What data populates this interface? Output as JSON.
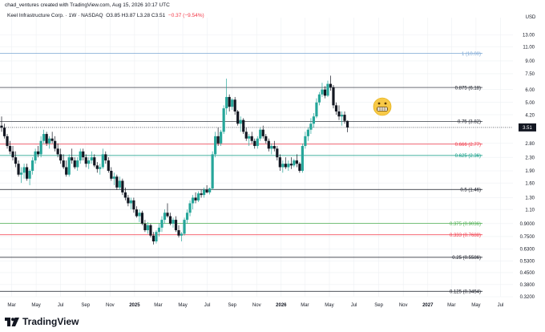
{
  "header": {
    "text": "chad_ventures created with TradingView.com, Aug 15, 2026 10:17 UTC"
  },
  "title": {
    "symbol": "Keel Infrastructure Corp. · 1W · NASDAQ",
    "ohlc": "O3.85  H3.87  L3.28  C3.51",
    "change": "−0.37 (−9.54%)"
  },
  "brand": {
    "name": "TradingView",
    "logo_icon": "tradingview-logo-icon"
  },
  "emoji": {
    "icon": "grimacing-face-icon"
  },
  "colors": {
    "up": "#26a69a",
    "down": "#131722",
    "bg": "#ffffff",
    "grid": "#eef0f3",
    "text": "#131722"
  },
  "chart_data": {
    "type": "candlestick",
    "yscale": "log",
    "ylim": [
      0.32,
      15.5
    ],
    "currency_label": "USD",
    "last_price": 3.51,
    "last_price_label": "3.51",
    "y_ticks": [
      {
        "v": 13.0,
        "label": "13.00"
      },
      {
        "v": 11.0,
        "label": "11.00"
      },
      {
        "v": 9.0,
        "label": "9.00"
      },
      {
        "v": 7.5,
        "label": "7.50"
      },
      {
        "v": 6.0,
        "label": "6.00"
      },
      {
        "v": 5.0,
        "label": "5.00"
      },
      {
        "v": 4.2,
        "label": "4.20"
      },
      {
        "v": 2.8,
        "label": "2.80"
      },
      {
        "v": 2.3,
        "label": "2.30"
      },
      {
        "v": 1.9,
        "label": "1.90"
      },
      {
        "v": 1.6,
        "label": "1.60"
      },
      {
        "v": 1.3,
        "label": "1.30"
      },
      {
        "v": 1.1,
        "label": "1.10"
      },
      {
        "v": 0.9,
        "label": "0.9000"
      },
      {
        "v": 0.75,
        "label": "0.7500"
      },
      {
        "v": 0.63,
        "label": "0.6300"
      },
      {
        "v": 0.53,
        "label": "0.5300"
      },
      {
        "v": 0.45,
        "label": "0.4500"
      },
      {
        "v": 0.38,
        "label": "0.3800"
      },
      {
        "v": 0.32,
        "label": "0.3200"
      }
    ],
    "x_ticks": [
      {
        "t": "2024-03-01",
        "label": "Mar",
        "bold": false
      },
      {
        "t": "2024-05-01",
        "label": "May",
        "bold": false
      },
      {
        "t": "2024-07-01",
        "label": "Jul",
        "bold": false
      },
      {
        "t": "2024-09-01",
        "label": "Sep",
        "bold": false
      },
      {
        "t": "2024-11-01",
        "label": "Nov",
        "bold": false
      },
      {
        "t": "2025-01-01",
        "label": "2025",
        "bold": true
      },
      {
        "t": "2025-03-01",
        "label": "Mar",
        "bold": false
      },
      {
        "t": "2025-05-01",
        "label": "May",
        "bold": false
      },
      {
        "t": "2025-07-01",
        "label": "Jul",
        "bold": false
      },
      {
        "t": "2025-09-01",
        "label": "Sep",
        "bold": false
      },
      {
        "t": "2025-11-01",
        "label": "Nov",
        "bold": false
      },
      {
        "t": "2026-01-01",
        "label": "2026",
        "bold": true
      },
      {
        "t": "2026-03-01",
        "label": "Mar",
        "bold": false
      },
      {
        "t": "2026-05-01",
        "label": "May",
        "bold": false
      },
      {
        "t": "2026-07-01",
        "label": "Jul",
        "bold": false
      },
      {
        "t": "2026-09-01",
        "label": "Sep",
        "bold": false
      },
      {
        "t": "2026-11-01",
        "label": "Nov",
        "bold": false
      },
      {
        "t": "2027-01-01",
        "label": "2027",
        "bold": true
      },
      {
        "t": "2027-03-01",
        "label": "Mar",
        "bold": false
      },
      {
        "t": "2027-05-01",
        "label": "May",
        "bold": false
      },
      {
        "t": "2027-07-01",
        "label": "Jul",
        "bold": false
      }
    ],
    "fib_levels": [
      {
        "level": 1,
        "price": 10.0,
        "label": "1 (10.00)",
        "color": "#7aa6d4"
      },
      {
        "level": 0.875,
        "price": 6.18,
        "label": "0.875 (6.18)",
        "color": "#131722"
      },
      {
        "level": 0.75,
        "price": 3.82,
        "label": "0.75 (3.82)",
        "color": "#131722"
      },
      {
        "level": 0.666,
        "price": 2.77,
        "label": "0.666 (2.77)",
        "color": "#f23645"
      },
      {
        "level": 0.625,
        "price": 2.36,
        "label": "0.625 (2.36)",
        "color": "#089981"
      },
      {
        "level": 0.5,
        "price": 1.46,
        "label": "0.5 (1.46)",
        "color": "#131722"
      },
      {
        "level": 0.375,
        "price": 0.9036,
        "label": "0.375 (0.9036)",
        "color": "#4caf50"
      },
      {
        "level": 0.333,
        "price": 0.7688,
        "label": "0.333 (0.7688)",
        "color": "#f23645"
      },
      {
        "level": 0.25,
        "price": 0.5586,
        "label": "0.25 (0.5586)",
        "color": "#131722"
      },
      {
        "level": 0.125,
        "price": 0.3454,
        "label": "0.125 (0.3454)",
        "color": "#131722"
      }
    ],
    "candles": [
      {
        "t": "2024-02-05",
        "o": 3.6,
        "h": 4.1,
        "l": 3.3,
        "c": 3.5
      },
      {
        "t": "2024-02-12",
        "o": 3.5,
        "h": 3.7,
        "l": 3.0,
        "c": 3.1
      },
      {
        "t": "2024-02-19",
        "o": 3.1,
        "h": 3.2,
        "l": 2.6,
        "c": 2.7
      },
      {
        "t": "2024-02-26",
        "o": 2.7,
        "h": 2.9,
        "l": 2.4,
        "c": 2.5
      },
      {
        "t": "2024-03-04",
        "o": 2.5,
        "h": 2.7,
        "l": 2.2,
        "c": 2.3
      },
      {
        "t": "2024-03-11",
        "o": 2.3,
        "h": 2.5,
        "l": 2.0,
        "c": 2.1
      },
      {
        "t": "2024-03-18",
        "o": 2.1,
        "h": 2.2,
        "l": 1.75,
        "c": 1.8
      },
      {
        "t": "2024-03-25",
        "o": 1.8,
        "h": 2.0,
        "l": 1.6,
        "c": 1.85
      },
      {
        "t": "2024-04-01",
        "o": 1.85,
        "h": 2.1,
        "l": 1.7,
        "c": 2.0
      },
      {
        "t": "2024-04-08",
        "o": 2.0,
        "h": 2.1,
        "l": 1.65,
        "c": 1.7
      },
      {
        "t": "2024-04-15",
        "o": 1.7,
        "h": 1.95,
        "l": 1.55,
        "c": 1.9
      },
      {
        "t": "2024-04-22",
        "o": 1.9,
        "h": 2.3,
        "l": 1.8,
        "c": 2.2
      },
      {
        "t": "2024-04-29",
        "o": 2.2,
        "h": 2.6,
        "l": 2.1,
        "c": 2.5
      },
      {
        "t": "2024-05-06",
        "o": 2.5,
        "h": 2.7,
        "l": 2.3,
        "c": 2.4
      },
      {
        "t": "2024-05-13",
        "o": 2.4,
        "h": 3.1,
        "l": 2.3,
        "c": 2.9
      },
      {
        "t": "2024-05-20",
        "o": 2.9,
        "h": 3.4,
        "l": 2.8,
        "c": 3.2
      },
      {
        "t": "2024-05-27",
        "o": 3.2,
        "h": 3.3,
        "l": 2.7,
        "c": 2.8
      },
      {
        "t": "2024-06-03",
        "o": 2.8,
        "h": 3.1,
        "l": 2.6,
        "c": 3.0
      },
      {
        "t": "2024-06-10",
        "o": 3.0,
        "h": 3.3,
        "l": 2.8,
        "c": 2.9
      },
      {
        "t": "2024-06-17",
        "o": 2.9,
        "h": 3.1,
        "l": 2.5,
        "c": 2.6
      },
      {
        "t": "2024-06-24",
        "o": 2.6,
        "h": 2.8,
        "l": 2.3,
        "c": 2.4
      },
      {
        "t": "2024-07-01",
        "o": 2.4,
        "h": 2.6,
        "l": 2.1,
        "c": 2.2
      },
      {
        "t": "2024-07-08",
        "o": 2.2,
        "h": 2.4,
        "l": 1.95,
        "c": 2.0
      },
      {
        "t": "2024-07-15",
        "o": 2.0,
        "h": 2.2,
        "l": 1.75,
        "c": 1.8
      },
      {
        "t": "2024-07-22",
        "o": 1.8,
        "h": 2.4,
        "l": 1.75,
        "c": 2.3
      },
      {
        "t": "2024-07-29",
        "o": 2.3,
        "h": 2.6,
        "l": 2.1,
        "c": 2.2
      },
      {
        "t": "2024-08-05",
        "o": 2.2,
        "h": 2.3,
        "l": 1.95,
        "c": 2.0
      },
      {
        "t": "2024-08-12",
        "o": 2.0,
        "h": 2.3,
        "l": 1.9,
        "c": 2.2
      },
      {
        "t": "2024-08-19",
        "o": 2.2,
        "h": 2.6,
        "l": 2.1,
        "c": 2.5
      },
      {
        "t": "2024-08-26",
        "o": 2.5,
        "h": 2.6,
        "l": 2.2,
        "c": 2.3
      },
      {
        "t": "2024-09-02",
        "o": 2.3,
        "h": 2.4,
        "l": 2.0,
        "c": 2.1
      },
      {
        "t": "2024-09-09",
        "o": 2.1,
        "h": 2.3,
        "l": 1.95,
        "c": 2.2
      },
      {
        "t": "2024-09-16",
        "o": 2.2,
        "h": 2.5,
        "l": 2.1,
        "c": 2.3
      },
      {
        "t": "2024-09-23",
        "o": 2.3,
        "h": 2.4,
        "l": 2.0,
        "c": 2.05
      },
      {
        "t": "2024-09-30",
        "o": 2.05,
        "h": 2.15,
        "l": 1.85,
        "c": 1.95
      },
      {
        "t": "2024-10-07",
        "o": 1.95,
        "h": 2.1,
        "l": 1.8,
        "c": 2.0
      },
      {
        "t": "2024-10-14",
        "o": 2.0,
        "h": 2.6,
        "l": 1.95,
        "c": 2.4
      },
      {
        "t": "2024-10-21",
        "o": 2.4,
        "h": 2.5,
        "l": 2.1,
        "c": 2.2
      },
      {
        "t": "2024-10-28",
        "o": 2.2,
        "h": 2.3,
        "l": 1.85,
        "c": 1.9
      },
      {
        "t": "2024-11-04",
        "o": 1.9,
        "h": 2.0,
        "l": 1.65,
        "c": 1.7
      },
      {
        "t": "2024-11-11",
        "o": 1.7,
        "h": 1.85,
        "l": 1.55,
        "c": 1.75
      },
      {
        "t": "2024-11-18",
        "o": 1.75,
        "h": 1.8,
        "l": 1.45,
        "c": 1.5
      },
      {
        "t": "2024-11-25",
        "o": 1.5,
        "h": 1.75,
        "l": 1.45,
        "c": 1.65
      },
      {
        "t": "2024-12-02",
        "o": 1.65,
        "h": 1.7,
        "l": 1.35,
        "c": 1.4
      },
      {
        "t": "2024-12-09",
        "o": 1.4,
        "h": 1.5,
        "l": 1.25,
        "c": 1.3
      },
      {
        "t": "2024-12-16",
        "o": 1.3,
        "h": 1.35,
        "l": 1.15,
        "c": 1.2
      },
      {
        "t": "2024-12-23",
        "o": 1.2,
        "h": 1.3,
        "l": 1.1,
        "c": 1.25
      },
      {
        "t": "2024-12-30",
        "o": 1.25,
        "h": 1.3,
        "l": 1.05,
        "c": 1.1
      },
      {
        "t": "2025-01-06",
        "o": 1.1,
        "h": 1.15,
        "l": 0.98,
        "c": 1.0
      },
      {
        "t": "2025-01-13",
        "o": 1.0,
        "h": 1.1,
        "l": 0.92,
        "c": 1.05
      },
      {
        "t": "2025-01-20",
        "o": 1.05,
        "h": 1.08,
        "l": 0.88,
        "c": 0.9
      },
      {
        "t": "2025-01-27",
        "o": 0.9,
        "h": 0.95,
        "l": 0.8,
        "c": 0.82
      },
      {
        "t": "2025-02-03",
        "o": 0.82,
        "h": 0.92,
        "l": 0.78,
        "c": 0.88
      },
      {
        "t": "2025-02-10",
        "o": 0.88,
        "h": 0.9,
        "l": 0.74,
        "c": 0.76
      },
      {
        "t": "2025-02-17",
        "o": 0.76,
        "h": 0.8,
        "l": 0.67,
        "c": 0.7
      },
      {
        "t": "2025-02-24",
        "o": 0.7,
        "h": 0.82,
        "l": 0.68,
        "c": 0.8
      },
      {
        "t": "2025-03-03",
        "o": 0.8,
        "h": 0.9,
        "l": 0.75,
        "c": 0.85
      },
      {
        "t": "2025-03-10",
        "o": 0.85,
        "h": 1.0,
        "l": 0.8,
        "c": 0.95
      },
      {
        "t": "2025-03-17",
        "o": 0.95,
        "h": 1.1,
        "l": 0.9,
        "c": 1.05
      },
      {
        "t": "2025-03-24",
        "o": 1.05,
        "h": 1.2,
        "l": 0.98,
        "c": 1.0
      },
      {
        "t": "2025-03-31",
        "o": 1.0,
        "h": 1.05,
        "l": 0.88,
        "c": 0.9
      },
      {
        "t": "2025-04-07",
        "o": 0.9,
        "h": 0.98,
        "l": 0.85,
        "c": 0.95
      },
      {
        "t": "2025-04-14",
        "o": 0.95,
        "h": 1.0,
        "l": 0.8,
        "c": 0.82
      },
      {
        "t": "2025-04-21",
        "o": 0.82,
        "h": 0.88,
        "l": 0.74,
        "c": 0.76
      },
      {
        "t": "2025-04-28",
        "o": 0.76,
        "h": 0.8,
        "l": 0.7,
        "c": 0.78
      },
      {
        "t": "2025-05-05",
        "o": 0.78,
        "h": 0.98,
        "l": 0.76,
        "c": 0.95
      },
      {
        "t": "2025-05-12",
        "o": 0.95,
        "h": 1.1,
        "l": 0.9,
        "c": 1.05
      },
      {
        "t": "2025-05-19",
        "o": 1.05,
        "h": 1.25,
        "l": 1.0,
        "c": 1.2
      },
      {
        "t": "2025-05-26",
        "o": 1.2,
        "h": 1.35,
        "l": 1.1,
        "c": 1.3
      },
      {
        "t": "2025-06-02",
        "o": 1.3,
        "h": 1.4,
        "l": 1.2,
        "c": 1.25
      },
      {
        "t": "2025-06-09",
        "o": 1.25,
        "h": 1.42,
        "l": 1.22,
        "c": 1.38
      },
      {
        "t": "2025-06-16",
        "o": 1.38,
        "h": 1.45,
        "l": 1.3,
        "c": 1.35
      },
      {
        "t": "2025-06-23",
        "o": 1.35,
        "h": 1.5,
        "l": 1.3,
        "c": 1.45
      },
      {
        "t": "2025-06-30",
        "o": 1.45,
        "h": 1.55,
        "l": 1.38,
        "c": 1.4
      },
      {
        "t": "2025-07-07",
        "o": 1.4,
        "h": 1.5,
        "l": 1.36,
        "c": 1.48
      },
      {
        "t": "2025-07-14",
        "o": 1.48,
        "h": 2.5,
        "l": 1.45,
        "c": 2.4
      },
      {
        "t": "2025-07-21",
        "o": 2.4,
        "h": 3.3,
        "l": 2.3,
        "c": 3.1
      },
      {
        "t": "2025-07-28",
        "o": 3.1,
        "h": 3.5,
        "l": 2.7,
        "c": 2.8
      },
      {
        "t": "2025-08-04",
        "o": 2.8,
        "h": 3.4,
        "l": 2.7,
        "c": 3.3
      },
      {
        "t": "2025-08-11",
        "o": 3.3,
        "h": 4.8,
        "l": 3.2,
        "c": 4.6
      },
      {
        "t": "2025-08-18",
        "o": 4.6,
        "h": 7.0,
        "l": 4.2,
        "c": 5.4
      },
      {
        "t": "2025-08-25",
        "o": 5.4,
        "h": 5.6,
        "l": 4.4,
        "c": 4.7
      },
      {
        "t": "2025-09-01",
        "o": 4.7,
        "h": 5.3,
        "l": 4.5,
        "c": 5.2
      },
      {
        "t": "2025-09-08",
        "o": 5.2,
        "h": 5.4,
        "l": 4.2,
        "c": 4.4
      },
      {
        "t": "2025-09-15",
        "o": 4.4,
        "h": 4.5,
        "l": 3.6,
        "c": 3.7
      },
      {
        "t": "2025-09-22",
        "o": 3.7,
        "h": 4.1,
        "l": 3.3,
        "c": 3.9
      },
      {
        "t": "2025-09-29",
        "o": 3.9,
        "h": 4.0,
        "l": 3.2,
        "c": 3.3
      },
      {
        "t": "2025-10-06",
        "o": 3.3,
        "h": 3.5,
        "l": 2.9,
        "c": 3.0
      },
      {
        "t": "2025-10-13",
        "o": 3.0,
        "h": 3.2,
        "l": 2.7,
        "c": 3.1
      },
      {
        "t": "2025-10-20",
        "o": 3.1,
        "h": 3.3,
        "l": 2.8,
        "c": 2.9
      },
      {
        "t": "2025-10-27",
        "o": 2.9,
        "h": 3.0,
        "l": 2.6,
        "c": 2.7
      },
      {
        "t": "2025-11-03",
        "o": 2.7,
        "h": 3.1,
        "l": 2.6,
        "c": 3.0
      },
      {
        "t": "2025-11-10",
        "o": 3.0,
        "h": 3.5,
        "l": 2.9,
        "c": 3.4
      },
      {
        "t": "2025-11-17",
        "o": 3.4,
        "h": 3.6,
        "l": 3.0,
        "c": 3.1
      },
      {
        "t": "2025-11-24",
        "o": 3.1,
        "h": 3.2,
        "l": 2.8,
        "c": 2.9
      },
      {
        "t": "2025-12-01",
        "o": 2.9,
        "h": 3.0,
        "l": 2.5,
        "c": 2.6
      },
      {
        "t": "2025-12-08",
        "o": 2.6,
        "h": 2.8,
        "l": 2.4,
        "c": 2.7
      },
      {
        "t": "2025-12-15",
        "o": 2.7,
        "h": 2.9,
        "l": 2.5,
        "c": 2.6
      },
      {
        "t": "2025-12-22",
        "o": 2.6,
        "h": 2.7,
        "l": 2.2,
        "c": 2.3
      },
      {
        "t": "2025-12-29",
        "o": 2.3,
        "h": 2.4,
        "l": 1.9,
        "c": 2.0
      },
      {
        "t": "2026-01-05",
        "o": 2.0,
        "h": 2.2,
        "l": 1.85,
        "c": 2.1
      },
      {
        "t": "2026-01-12",
        "o": 2.1,
        "h": 2.3,
        "l": 1.95,
        "c": 2.0
      },
      {
        "t": "2026-01-19",
        "o": 2.0,
        "h": 2.2,
        "l": 1.9,
        "c": 2.1
      },
      {
        "t": "2026-01-26",
        "o": 2.1,
        "h": 2.3,
        "l": 1.95,
        "c": 2.05
      },
      {
        "t": "2026-02-02",
        "o": 2.05,
        "h": 2.25,
        "l": 2.0,
        "c": 2.2
      },
      {
        "t": "2026-02-09",
        "o": 2.2,
        "h": 2.4,
        "l": 2.0,
        "c": 2.1
      },
      {
        "t": "2026-02-16",
        "o": 2.1,
        "h": 2.15,
        "l": 1.85,
        "c": 1.9
      },
      {
        "t": "2026-02-23",
        "o": 1.9,
        "h": 2.8,
        "l": 1.85,
        "c": 2.7
      },
      {
        "t": "2026-03-02",
        "o": 2.7,
        "h": 3.3,
        "l": 2.6,
        "c": 3.1
      },
      {
        "t": "2026-03-09",
        "o": 3.1,
        "h": 3.5,
        "l": 2.9,
        "c": 3.4
      },
      {
        "t": "2026-03-16",
        "o": 3.4,
        "h": 4.0,
        "l": 3.2,
        "c": 3.7
      },
      {
        "t": "2026-03-23",
        "o": 3.7,
        "h": 4.3,
        "l": 3.5,
        "c": 4.1
      },
      {
        "t": "2026-03-30",
        "o": 4.1,
        "h": 5.3,
        "l": 4.0,
        "c": 5.0
      },
      {
        "t": "2026-04-06",
        "o": 5.0,
        "h": 5.8,
        "l": 4.8,
        "c": 5.6
      },
      {
        "t": "2026-04-13",
        "o": 5.6,
        "h": 6.6,
        "l": 5.4,
        "c": 6.0
      },
      {
        "t": "2026-04-20",
        "o": 6.0,
        "h": 6.3,
        "l": 5.3,
        "c": 5.5
      },
      {
        "t": "2026-04-27",
        "o": 5.5,
        "h": 6.8,
        "l": 5.4,
        "c": 6.5
      },
      {
        "t": "2026-05-04",
        "o": 6.5,
        "h": 7.3,
        "l": 5.9,
        "c": 6.2
      },
      {
        "t": "2026-05-11",
        "o": 6.2,
        "h": 6.4,
        "l": 4.6,
        "c": 4.8
      },
      {
        "t": "2026-05-18",
        "o": 4.8,
        "h": 5.0,
        "l": 4.2,
        "c": 4.4
      },
      {
        "t": "2026-05-25",
        "o": 4.4,
        "h": 4.8,
        "l": 3.9,
        "c": 4.1
      },
      {
        "t": "2026-06-01",
        "o": 4.1,
        "h": 4.4,
        "l": 3.6,
        "c": 4.2
      },
      {
        "t": "2026-06-08",
        "o": 4.2,
        "h": 4.4,
        "l": 3.7,
        "c": 3.85
      },
      {
        "t": "2026-06-15",
        "o": 3.85,
        "h": 3.87,
        "l": 3.28,
        "c": 3.51
      }
    ]
  }
}
